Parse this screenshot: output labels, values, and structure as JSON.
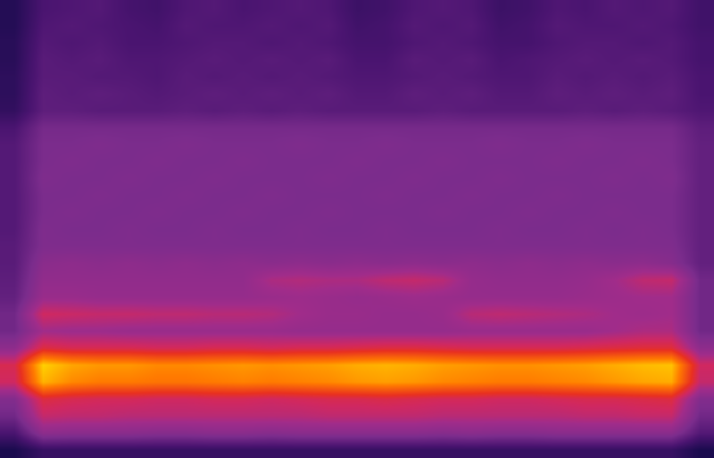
{
  "chart_data": {
    "type": "heatmap",
    "tick_labels": false,
    "grid": false,
    "zlim": [
      0,
      100
    ],
    "z": [
      [
        22,
        30,
        31,
        32,
        29,
        28,
        31,
        32,
        30,
        31,
        32,
        31,
        27,
        28,
        31,
        32,
        31,
        27,
        28,
        31,
        30,
        32,
        31,
        32,
        28
      ],
      [
        22,
        31,
        32,
        31,
        30,
        29,
        32,
        31,
        31,
        32,
        31,
        32,
        28,
        29,
        32,
        31,
        32,
        28,
        29,
        32,
        31,
        31,
        32,
        31,
        28
      ],
      [
        23,
        32,
        31,
        32,
        30,
        30,
        31,
        32,
        32,
        31,
        32,
        31,
        29,
        29,
        31,
        32,
        31,
        29,
        29,
        31,
        32,
        32,
        31,
        32,
        29
      ],
      [
        23,
        33,
        32,
        33,
        31,
        31,
        32,
        33,
        32,
        33,
        32,
        33,
        30,
        30,
        33,
        32,
        33,
        30,
        31,
        32,
        33,
        32,
        33,
        32,
        29
      ],
      [
        24,
        33,
        33,
        32,
        32,
        31,
        33,
        32,
        33,
        32,
        33,
        32,
        31,
        31,
        32,
        33,
        32,
        31,
        31,
        33,
        32,
        33,
        32,
        33,
        30
      ],
      [
        24,
        34,
        33,
        34,
        33,
        32,
        33,
        34,
        33,
        34,
        33,
        34,
        32,
        32,
        34,
        33,
        34,
        32,
        32,
        34,
        33,
        34,
        33,
        34,
        30
      ],
      [
        25,
        34,
        34,
        33,
        33,
        33,
        34,
        33,
        34,
        33,
        34,
        33,
        33,
        33,
        33,
        34,
        33,
        33,
        33,
        33,
        34,
        33,
        34,
        33,
        31
      ],
      [
        30,
        39,
        39,
        39,
        39,
        39,
        39,
        39,
        39,
        39,
        39,
        39,
        39,
        39,
        39,
        39,
        39,
        39,
        39,
        39,
        39,
        39,
        39,
        39,
        34
      ],
      [
        32,
        40,
        40,
        41,
        40,
        40,
        41,
        40,
        40,
        40,
        41,
        40,
        40,
        41,
        40,
        40,
        40,
        41,
        40,
        40,
        41,
        40,
        40,
        40,
        35
      ],
      [
        32,
        40,
        41,
        40,
        40,
        41,
        40,
        40,
        41,
        40,
        40,
        40,
        41,
        40,
        40,
        41,
        40,
        40,
        40,
        41,
        40,
        40,
        41,
        40,
        35
      ],
      [
        32,
        41,
        40,
        40,
        41,
        40,
        40,
        41,
        40,
        40,
        40,
        41,
        40,
        40,
        41,
        40,
        40,
        41,
        40,
        40,
        40,
        41,
        40,
        41,
        35
      ],
      [
        32,
        40,
        40,
        41,
        40,
        40,
        41,
        40,
        40,
        41,
        40,
        40,
        40,
        41,
        40,
        40,
        41,
        40,
        40,
        41,
        40,
        40,
        40,
        40,
        35
      ],
      [
        32,
        40,
        41,
        40,
        40,
        41,
        40,
        40,
        41,
        40,
        40,
        41,
        40,
        40,
        40,
        41,
        40,
        40,
        41,
        40,
        40,
        41,
        40,
        40,
        35
      ],
      [
        32,
        41,
        40,
        40,
        41,
        40,
        40,
        41,
        40,
        40,
        41,
        40,
        40,
        41,
        40,
        40,
        40,
        41,
        40,
        40,
        41,
        40,
        41,
        40,
        35
      ],
      [
        33,
        41,
        41,
        41,
        41,
        41,
        41,
        41,
        41,
        41,
        41,
        41,
        41,
        41,
        41,
        41,
        41,
        41,
        41,
        41,
        41,
        41,
        41,
        41,
        35
      ],
      [
        33,
        44,
        45,
        44,
        45,
        44,
        45,
        44,
        45,
        44,
        45,
        44,
        45,
        44,
        45,
        44,
        45,
        44,
        45,
        44,
        45,
        44,
        45,
        43,
        35
      ],
      [
        34,
        46,
        46,
        46,
        46,
        46,
        46,
        46,
        46,
        52,
        53,
        52,
        52,
        55,
        56,
        54,
        47,
        46,
        46,
        46,
        47,
        50,
        55,
        56,
        38
      ],
      [
        35,
        48,
        48,
        47,
        47,
        47,
        47,
        47,
        47,
        48,
        49,
        48,
        47,
        48,
        49,
        48,
        47,
        47,
        47,
        47,
        48,
        49,
        50,
        50,
        38
      ],
      [
        38,
        58,
        57,
        56,
        56,
        55,
        55,
        54,
        54,
        53,
        50,
        48,
        48,
        47,
        47,
        48,
        54,
        55,
        54,
        53,
        52,
        50,
        49,
        50,
        38
      ],
      [
        38,
        50,
        49,
        49,
        48,
        48,
        48,
        48,
        48,
        48,
        47,
        47,
        47,
        47,
        47,
        47,
        48,
        48,
        48,
        48,
        48,
        50,
        52,
        52,
        38
      ],
      [
        45,
        62,
        60,
        60,
        60,
        59,
        59,
        60,
        60,
        59,
        60,
        60,
        61,
        62,
        62,
        61,
        60,
        60,
        60,
        60,
        61,
        62,
        63,
        63,
        45
      ],
      [
        60,
        92,
        86,
        84,
        84,
        82,
        82,
        83,
        84,
        83,
        84,
        85,
        87,
        88,
        87,
        85,
        84,
        83,
        83,
        84,
        85,
        87,
        89,
        90,
        58
      ],
      [
        58,
        88,
        82,
        80,
        80,
        79,
        79,
        80,
        81,
        80,
        81,
        82,
        84,
        85,
        84,
        82,
        81,
        80,
        80,
        81,
        82,
        84,
        86,
        87,
        56
      ],
      [
        42,
        62,
        60,
        59,
        59,
        58,
        58,
        59,
        59,
        58,
        59,
        60,
        60,
        61,
        60,
        59,
        59,
        58,
        58,
        59,
        60,
        60,
        61,
        62,
        42
      ],
      [
        38,
        56,
        55,
        55,
        54,
        54,
        54,
        54,
        54,
        54,
        54,
        55,
        55,
        55,
        55,
        54,
        54,
        54,
        54,
        54,
        55,
        55,
        56,
        56,
        38
      ],
      [
        30,
        45,
        44,
        44,
        44,
        43,
        43,
        44,
        44,
        43,
        44,
        44,
        44,
        44,
        44,
        43,
        44,
        43,
        43,
        44,
        44,
        44,
        44,
        44,
        32
      ],
      [
        20,
        26,
        26,
        26,
        26,
        26,
        26,
        26,
        26,
        26,
        26,
        26,
        26,
        26,
        26,
        26,
        26,
        26,
        26,
        26,
        26,
        26,
        26,
        26,
        20
      ]
    ]
  }
}
